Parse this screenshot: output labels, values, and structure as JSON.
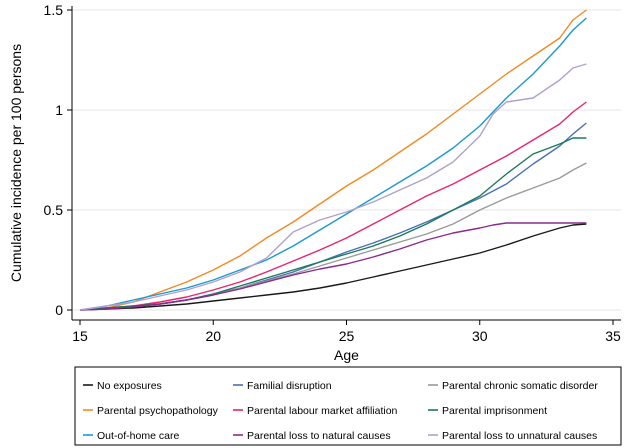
{
  "chart_data": {
    "type": "line",
    "xlabel": "Age",
    "ylabel": "Cumulative incidence per 100 persons",
    "xlim": [
      14.7,
      35.3
    ],
    "ylim": [
      -0.05,
      1.52
    ],
    "x_ticks": [
      15,
      20,
      25,
      30,
      35
    ],
    "x_tick_labels": [
      "15",
      "20",
      "25",
      "30",
      "35"
    ],
    "y_ticks": [
      0,
      0.5,
      1,
      1.5
    ],
    "y_tick_labels": [
      "0",
      "0.5",
      "1",
      "1.5"
    ],
    "grid": "horizontal",
    "legend_position": "bottom",
    "series": [
      {
        "name": "No exposures",
        "color": "#1a1a1a",
        "points": [
          [
            15,
            0
          ],
          [
            16,
            0.005
          ],
          [
            17,
            0.01
          ],
          [
            18,
            0.02
          ],
          [
            19,
            0.03
          ],
          [
            20,
            0.045
          ],
          [
            21,
            0.06
          ],
          [
            22,
            0.075
          ],
          [
            23,
            0.09
          ],
          [
            24,
            0.11
          ],
          [
            25,
            0.135
          ],
          [
            26,
            0.165
          ],
          [
            27,
            0.195
          ],
          [
            28,
            0.225
          ],
          [
            29,
            0.255
          ],
          [
            30,
            0.285
          ],
          [
            31,
            0.325
          ],
          [
            32,
            0.37
          ],
          [
            33,
            0.41
          ],
          [
            33.5,
            0.425
          ],
          [
            34,
            0.43
          ]
        ]
      },
      {
        "name": "Familial disruption",
        "color": "#4a6fb5",
        "points": [
          [
            15,
            0
          ],
          [
            16,
            0.01
          ],
          [
            17,
            0.02
          ],
          [
            18,
            0.03
          ],
          [
            19,
            0.05
          ],
          [
            20,
            0.08
          ],
          [
            21,
            0.11
          ],
          [
            22,
            0.15
          ],
          [
            23,
            0.19
          ],
          [
            24,
            0.24
          ],
          [
            25,
            0.29
          ],
          [
            26,
            0.335
          ],
          [
            27,
            0.385
          ],
          [
            28,
            0.44
          ],
          [
            29,
            0.5
          ],
          [
            30,
            0.56
          ],
          [
            31,
            0.63
          ],
          [
            32,
            0.73
          ],
          [
            33,
            0.82
          ],
          [
            33.5,
            0.88
          ],
          [
            34,
            0.935
          ]
        ]
      },
      {
        "name": "Parental chronic somatic disorder",
        "color": "#9a9a9a",
        "points": [
          [
            15,
            0
          ],
          [
            16,
            0.01
          ],
          [
            17,
            0.02
          ],
          [
            18,
            0.03
          ],
          [
            19,
            0.05
          ],
          [
            20,
            0.075
          ],
          [
            21,
            0.11
          ],
          [
            22,
            0.145
          ],
          [
            23,
            0.18
          ],
          [
            24,
            0.22
          ],
          [
            25,
            0.26
          ],
          [
            26,
            0.3
          ],
          [
            27,
            0.34
          ],
          [
            28,
            0.38
          ],
          [
            29,
            0.43
          ],
          [
            30,
            0.5
          ],
          [
            31,
            0.56
          ],
          [
            32,
            0.61
          ],
          [
            33,
            0.66
          ],
          [
            33.5,
            0.7
          ],
          [
            34,
            0.735
          ]
        ]
      },
      {
        "name": "Parental psychopathology",
        "color": "#f08a24",
        "points": [
          [
            15,
            0
          ],
          [
            16,
            0.01
          ],
          [
            17,
            0.04
          ],
          [
            18,
            0.09
          ],
          [
            19,
            0.14
          ],
          [
            20,
            0.2
          ],
          [
            21,
            0.27
          ],
          [
            22,
            0.36
          ],
          [
            23,
            0.44
          ],
          [
            24,
            0.53
          ],
          [
            25,
            0.62
          ],
          [
            26,
            0.7
          ],
          [
            27,
            0.79
          ],
          [
            28,
            0.88
          ],
          [
            29,
            0.98
          ],
          [
            30,
            1.08
          ],
          [
            31,
            1.18
          ],
          [
            32,
            1.27
          ],
          [
            33,
            1.36
          ],
          [
            33.5,
            1.45
          ],
          [
            34,
            1.5
          ]
        ]
      },
      {
        "name": "Parental labour market affiliation",
        "color": "#e8246e",
        "points": [
          [
            15,
            0
          ],
          [
            16,
            0.01
          ],
          [
            17,
            0.02
          ],
          [
            18,
            0.04
          ],
          [
            19,
            0.065
          ],
          [
            20,
            0.1
          ],
          [
            21,
            0.14
          ],
          [
            22,
            0.19
          ],
          [
            23,
            0.245
          ],
          [
            24,
            0.3
          ],
          [
            25,
            0.36
          ],
          [
            26,
            0.43
          ],
          [
            27,
            0.5
          ],
          [
            28,
            0.57
          ],
          [
            29,
            0.63
          ],
          [
            30,
            0.7
          ],
          [
            31,
            0.77
          ],
          [
            32,
            0.85
          ],
          [
            33,
            0.93
          ],
          [
            33.5,
            0.99
          ],
          [
            34,
            1.04
          ]
        ]
      },
      {
        "name": "Parental imprisonment",
        "color": "#1a7a5a",
        "points": [
          [
            15,
            0
          ],
          [
            16,
            0.01
          ],
          [
            17,
            0.02
          ],
          [
            18,
            0.03
          ],
          [
            19,
            0.05
          ],
          [
            20,
            0.08
          ],
          [
            21,
            0.12
          ],
          [
            22,
            0.16
          ],
          [
            23,
            0.2
          ],
          [
            24,
            0.24
          ],
          [
            25,
            0.28
          ],
          [
            26,
            0.32
          ],
          [
            27,
            0.37
          ],
          [
            28,
            0.43
          ],
          [
            29,
            0.5
          ],
          [
            30,
            0.57
          ],
          [
            31,
            0.68
          ],
          [
            32,
            0.78
          ],
          [
            33,
            0.83
          ],
          [
            33.5,
            0.86
          ],
          [
            34,
            0.86
          ]
        ]
      },
      {
        "name": "Out-of-home care",
        "color": "#1a9ad0",
        "points": [
          [
            15,
            0
          ],
          [
            16,
            0.02
          ],
          [
            17,
            0.05
          ],
          [
            18,
            0.08
          ],
          [
            19,
            0.11
          ],
          [
            20,
            0.15
          ],
          [
            21,
            0.2
          ],
          [
            22,
            0.25
          ],
          [
            23,
            0.32
          ],
          [
            24,
            0.4
          ],
          [
            25,
            0.48
          ],
          [
            26,
            0.56
          ],
          [
            27,
            0.64
          ],
          [
            28,
            0.72
          ],
          [
            29,
            0.81
          ],
          [
            30,
            0.92
          ],
          [
            31,
            1.06
          ],
          [
            32,
            1.18
          ],
          [
            33,
            1.32
          ],
          [
            33.5,
            1.4
          ],
          [
            34,
            1.46
          ]
        ]
      },
      {
        "name": "Parental loss to natural causes",
        "color": "#8a2a8a",
        "points": [
          [
            15,
            0
          ],
          [
            16,
            0.005
          ],
          [
            17,
            0.015
          ],
          [
            18,
            0.03
          ],
          [
            19,
            0.05
          ],
          [
            20,
            0.075
          ],
          [
            21,
            0.105
          ],
          [
            22,
            0.14
          ],
          [
            23,
            0.175
          ],
          [
            24,
            0.205
          ],
          [
            25,
            0.23
          ],
          [
            26,
            0.265
          ],
          [
            27,
            0.305
          ],
          [
            28,
            0.35
          ],
          [
            29,
            0.385
          ],
          [
            30,
            0.41
          ],
          [
            30.5,
            0.425
          ],
          [
            31,
            0.435
          ],
          [
            32,
            0.435
          ],
          [
            33,
            0.435
          ],
          [
            34,
            0.435
          ]
        ]
      },
      {
        "name": "Parental loss to unnatural causes",
        "color": "#b0a0cc",
        "points": [
          [
            15,
            0
          ],
          [
            16,
            0.02
          ],
          [
            17,
            0.04
          ],
          [
            18,
            0.07
          ],
          [
            19,
            0.1
          ],
          [
            20,
            0.14
          ],
          [
            21,
            0.19
          ],
          [
            22,
            0.26
          ],
          [
            23,
            0.39
          ],
          [
            24,
            0.45
          ],
          [
            25,
            0.49
          ],
          [
            26,
            0.54
          ],
          [
            27,
            0.6
          ],
          [
            28,
            0.66
          ],
          [
            29,
            0.74
          ],
          [
            30,
            0.87
          ],
          [
            30.5,
            0.98
          ],
          [
            31,
            1.04
          ],
          [
            32,
            1.06
          ],
          [
            33,
            1.15
          ],
          [
            33.5,
            1.21
          ],
          [
            34,
            1.23
          ]
        ]
      }
    ]
  }
}
